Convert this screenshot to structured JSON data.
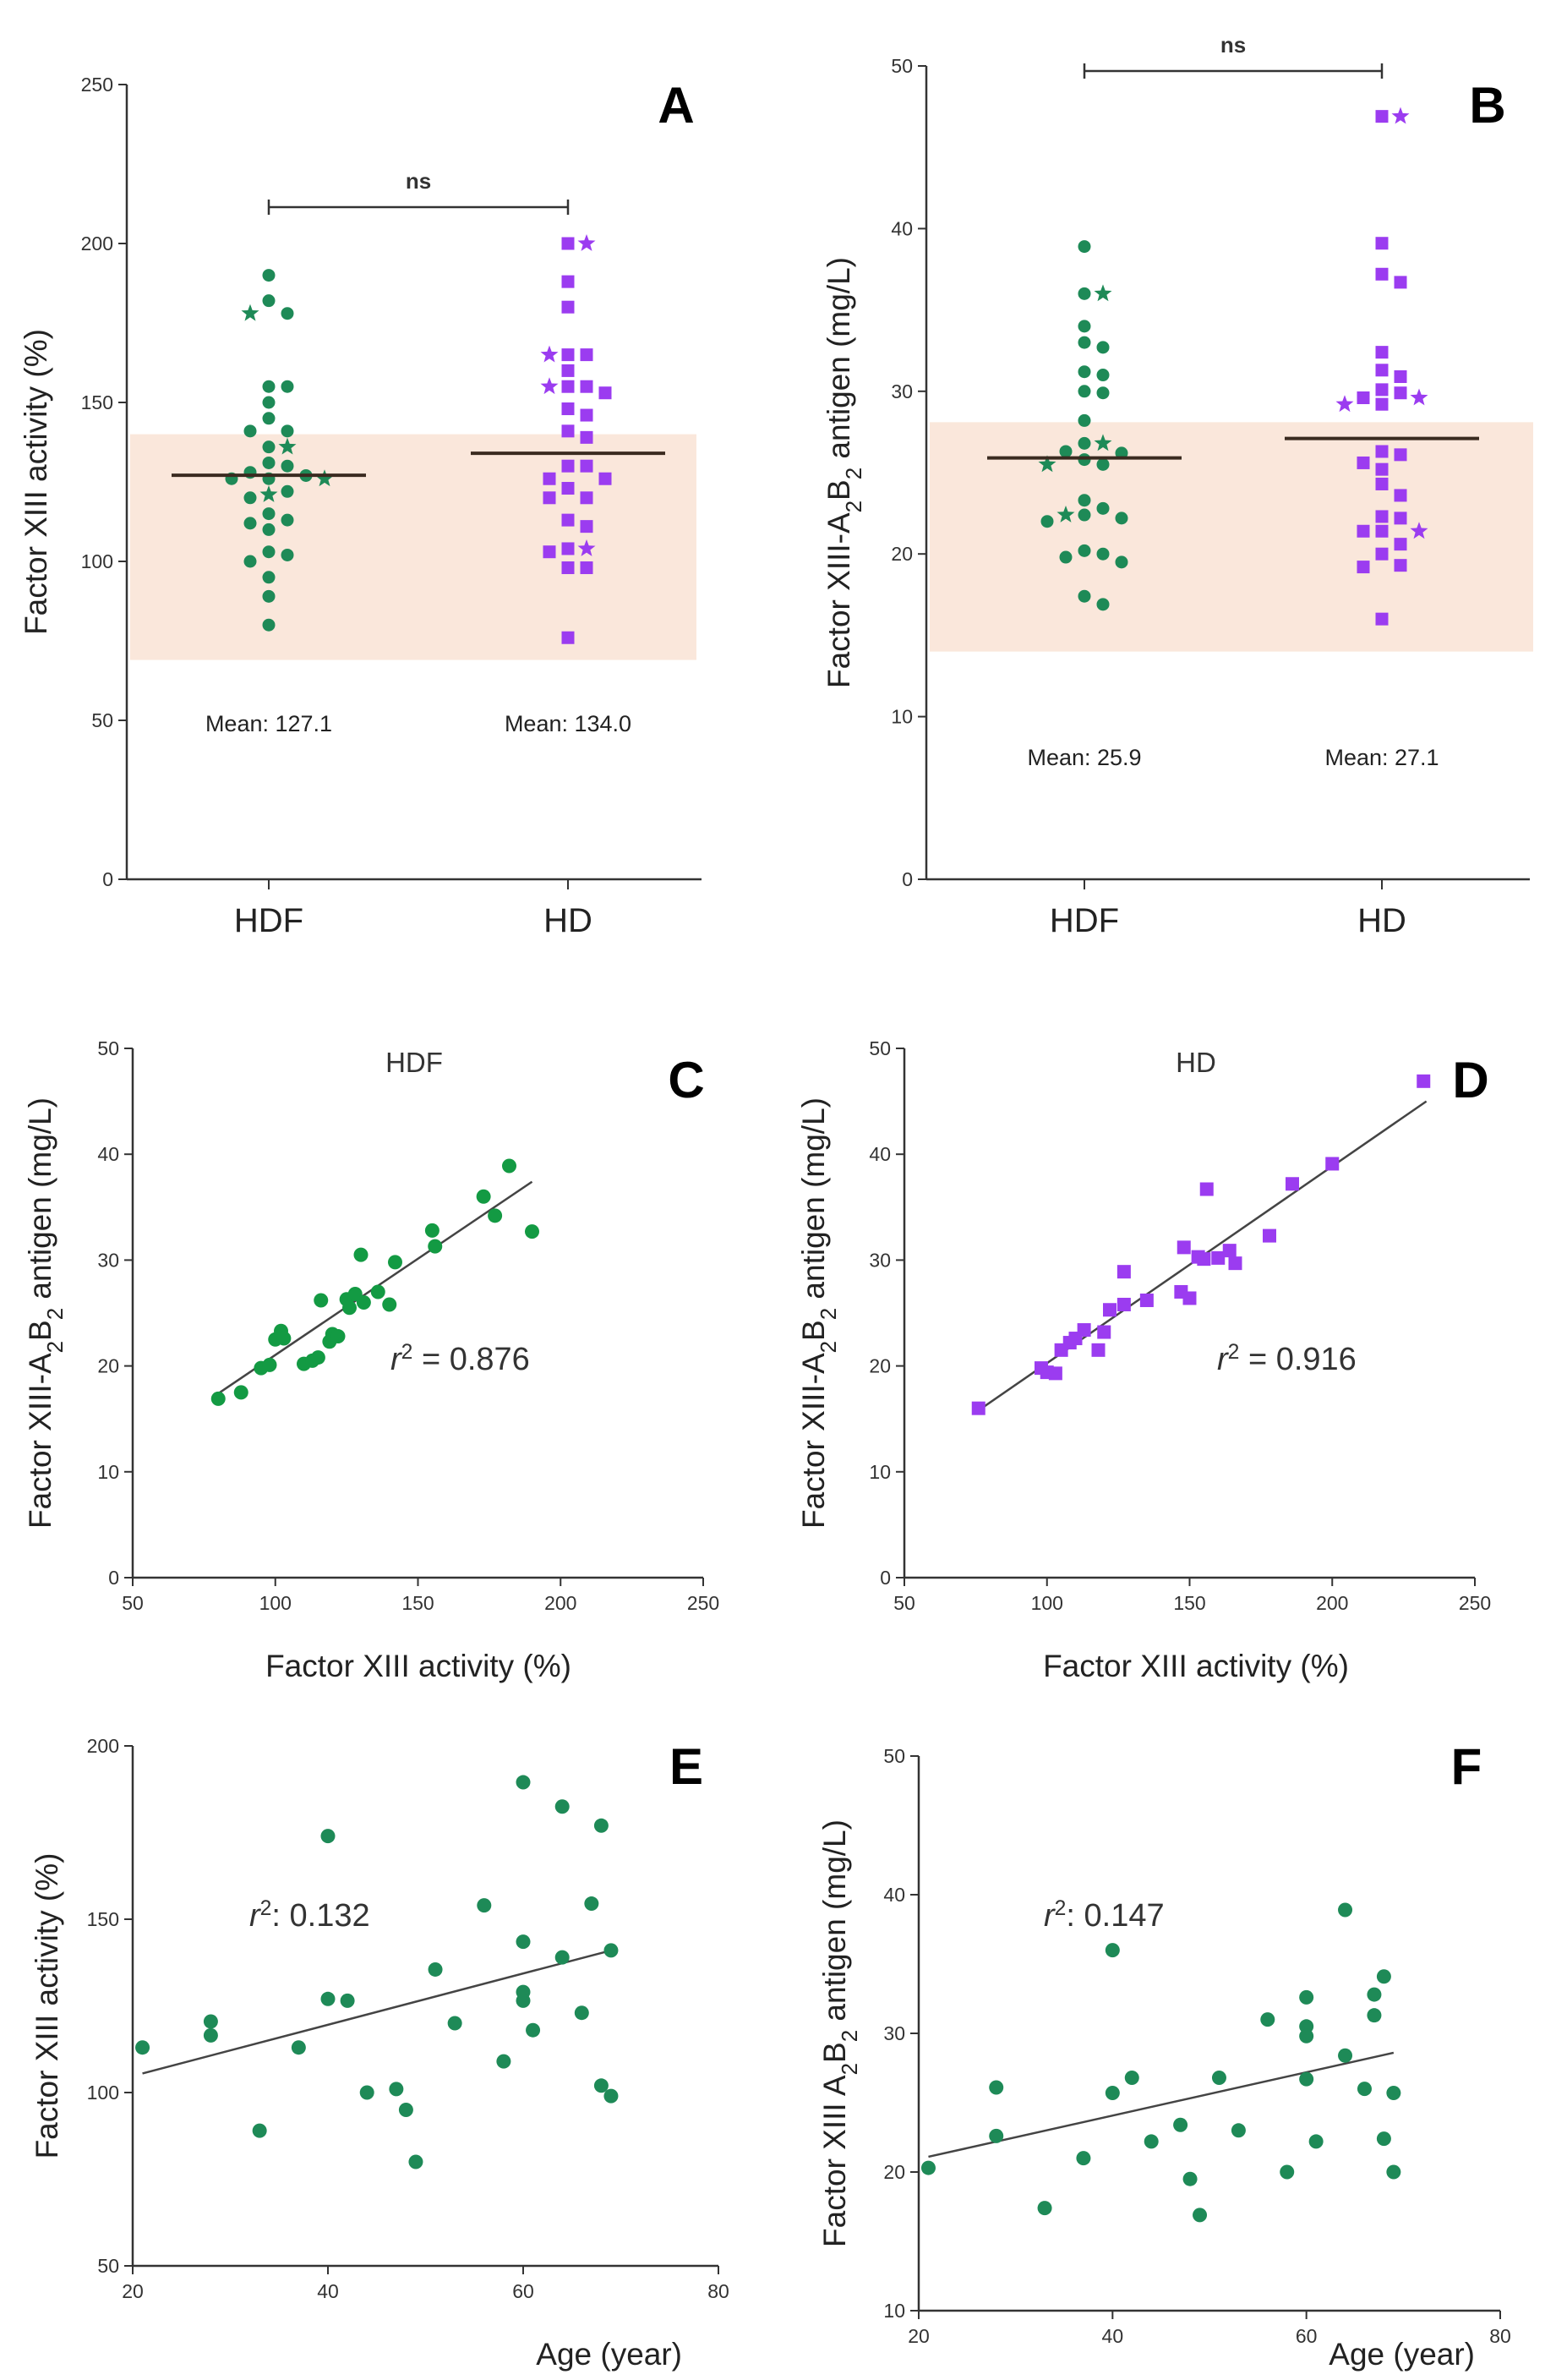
{
  "colors": {
    "hdf": "#1e8a57",
    "hd": "#9b3cf0",
    "normal_range": "#fae7db",
    "axis": "#333333",
    "fit": "#444444",
    "green_scatter": "#139a43"
  },
  "chart_data": [
    {
      "id": "A",
      "type": "scatter",
      "panel_label": "A",
      "ylabel": "Factor XIII activity (%)",
      "ylim": [
        0,
        250
      ],
      "yticks": [
        0,
        50,
        100,
        150,
        200,
        250
      ],
      "categories": [
        "HDF",
        "HD"
      ],
      "normal_range": [
        69,
        140
      ],
      "series": [
        {
          "name": "HDF",
          "mean": 127.1,
          "mean_label": "Mean: 127.1",
          "values": [
            190,
            182,
            178,
            155,
            155,
            150,
            145,
            141,
            141,
            136,
            131,
            130,
            128,
            127,
            126,
            126,
            122,
            120,
            115,
            113,
            112,
            110,
            103,
            102,
            100,
            95,
            89,
            80
          ],
          "star_values": [
            178,
            136,
            121,
            126
          ]
        },
        {
          "name": "HD",
          "mean": 134.0,
          "mean_label": "Mean: 134.0",
          "values": [
            200,
            188,
            180,
            165,
            165,
            160,
            155,
            155,
            153,
            148,
            146,
            141,
            139,
            130,
            130,
            126,
            126,
            123,
            120,
            120,
            113,
            111,
            104,
            103,
            98,
            98,
            76
          ],
          "star_values": [
            200,
            165,
            155,
            104
          ]
        }
      ],
      "significance": "ns"
    },
    {
      "id": "B",
      "type": "scatter",
      "panel_label": "B",
      "ylabel": "Factor XIII-A₂B₂ antigen (mg/L)",
      "ylim": [
        0,
        50
      ],
      "yticks": [
        0,
        10,
        20,
        30,
        40,
        50
      ],
      "categories": [
        "HDF",
        "HD"
      ],
      "normal_range": [
        14,
        28.1
      ],
      "series": [
        {
          "name": "HDF",
          "mean": 25.9,
          "mean_label": "Mean: 25.9",
          "values": [
            38.9,
            36,
            34,
            33,
            32.7,
            31.2,
            31,
            30,
            29.9,
            28.2,
            26.8,
            26.3,
            26.2,
            25.8,
            25.5,
            23.3,
            22.8,
            22.4,
            22.2,
            22,
            20.2,
            20,
            19.8,
            19.5,
            17.4,
            16.9
          ],
          "star_values": [
            36,
            26.8,
            25.5,
            22.4
          ]
        },
        {
          "name": "HD",
          "mean": 27.1,
          "mean_label": "Mean: 27.1",
          "values": [
            46.9,
            39.1,
            37.2,
            36.7,
            32.4,
            31.3,
            30.9,
            30.1,
            29.9,
            29.6,
            29.2,
            26.3,
            26.1,
            25.6,
            25.2,
            24.3,
            23.6,
            22.3,
            22.2,
            21.4,
            21.4,
            20.6,
            20,
            19.3,
            19.2,
            16
          ],
          "star_values": [
            46.9,
            29.6,
            29.2,
            21.4
          ]
        }
      ],
      "significance": "ns"
    },
    {
      "id": "C",
      "type": "scatter",
      "panel_label": "C",
      "subtitle": "HDF",
      "xlabel": "Factor XIII activity (%)",
      "ylabel": "Factor XIII-A₂B₂ antigen (mg/L)",
      "xlim": [
        50,
        250
      ],
      "ylim": [
        0,
        50
      ],
      "xticks": [
        50,
        100,
        150,
        200,
        250
      ],
      "yticks": [
        0,
        10,
        20,
        30,
        40,
        50
      ],
      "r2_label": "= 0.876",
      "fit": {
        "x": [
          80,
          190
        ],
        "y": [
          17.4,
          37.4
        ]
      },
      "points": [
        [
          80,
          16.9
        ],
        [
          88,
          17.5
        ],
        [
          95,
          19.8
        ],
        [
          98,
          20.1
        ],
        [
          100,
          22.5
        ],
        [
          102,
          23.3
        ],
        [
          103,
          22.6
        ],
        [
          110,
          20.2
        ],
        [
          113,
          20.5
        ],
        [
          115,
          20.8
        ],
        [
          116,
          26.2
        ],
        [
          119,
          22.3
        ],
        [
          120,
          23
        ],
        [
          122,
          22.8
        ],
        [
          125,
          26.3
        ],
        [
          126,
          25.5
        ],
        [
          128,
          26.8
        ],
        [
          130,
          30.5
        ],
        [
          131,
          26
        ],
        [
          136,
          27
        ],
        [
          140,
          25.8
        ],
        [
          142,
          29.8
        ],
        [
          155,
          32.8
        ],
        [
          156,
          31.3
        ],
        [
          173,
          36
        ],
        [
          177,
          34.2
        ],
        [
          182,
          38.9
        ],
        [
          190,
          32.7
        ]
      ]
    },
    {
      "id": "D",
      "type": "scatter",
      "panel_label": "D",
      "subtitle": "HD",
      "xlabel": "Factor XIII activity (%)",
      "ylabel": "Factor XIII-A₂B₂ antigen (mg/L)",
      "xlim": [
        50,
        250
      ],
      "ylim": [
        0,
        50
      ],
      "xticks": [
        50,
        100,
        150,
        200,
        250
      ],
      "yticks": [
        0,
        10,
        20,
        30,
        40,
        50
      ],
      "r2_label": "= 0.916",
      "fit": {
        "x": [
          76,
          233
        ],
        "y": [
          15.8,
          45
        ]
      },
      "points": [
        [
          76,
          16
        ],
        [
          98,
          19.8
        ],
        [
          100,
          19.4
        ],
        [
          103,
          19.3
        ],
        [
          105,
          21.5
        ],
        [
          108,
          22.2
        ],
        [
          110,
          22.6
        ],
        [
          113,
          23.4
        ],
        [
          118,
          21.5
        ],
        [
          120,
          23.2
        ],
        [
          122,
          25.3
        ],
        [
          127,
          25.8
        ],
        [
          127,
          28.9
        ],
        [
          135,
          26.2
        ],
        [
          147,
          27
        ],
        [
          148,
          31.2
        ],
        [
          150,
          26.4
        ],
        [
          153,
          30.3
        ],
        [
          155,
          30.1
        ],
        [
          156,
          36.7
        ],
        [
          160,
          30.2
        ],
        [
          164,
          30.9
        ],
        [
          166,
          29.7
        ],
        [
          178,
          32.3
        ],
        [
          186,
          37.2
        ],
        [
          200,
          39.1
        ],
        [
          232,
          46.9
        ]
      ]
    },
    {
      "id": "E",
      "type": "scatter",
      "panel_label": "E",
      "xlabel": "Age (year)",
      "ylabel": "Factor XIII activity (%)",
      "xlim": [
        20,
        80
      ],
      "ylim": [
        50,
        200
      ],
      "xticks": [
        20,
        40,
        60,
        80
      ],
      "yticks": [
        50,
        100,
        150,
        200
      ],
      "r2_label": ": 0.132",
      "fit": {
        "x": [
          21,
          69
        ],
        "y": [
          105.5,
          141
        ]
      },
      "points": [
        [
          21,
          113
        ],
        [
          28,
          120.5
        ],
        [
          28,
          116.5
        ],
        [
          33,
          89
        ],
        [
          37,
          113
        ],
        [
          40,
          174
        ],
        [
          40,
          127
        ],
        [
          42,
          126.5
        ],
        [
          44,
          100
        ],
        [
          47,
          101
        ],
        [
          48,
          95
        ],
        [
          49,
          80
        ],
        [
          51,
          135.5
        ],
        [
          53,
          120
        ],
        [
          56,
          154
        ],
        [
          58,
          109
        ],
        [
          60,
          189.5
        ],
        [
          60,
          143.5
        ],
        [
          60,
          129
        ],
        [
          60,
          126.5
        ],
        [
          61,
          118
        ],
        [
          64,
          182.5
        ],
        [
          64,
          139
        ],
        [
          66,
          123
        ],
        [
          67,
          154.5
        ],
        [
          68,
          177
        ],
        [
          68,
          102
        ],
        [
          69,
          141
        ],
        [
          69,
          99
        ]
      ]
    },
    {
      "id": "F",
      "type": "scatter",
      "panel_label": "F",
      "xlabel": "Age (year)",
      "ylabel": "Factor XIII A₂B₂ antigen (mg/L)",
      "xlim": [
        20,
        80
      ],
      "ylim": [
        10,
        50
      ],
      "xticks": [
        20,
        40,
        60,
        80
      ],
      "yticks": [
        10,
        20,
        30,
        40,
        50
      ],
      "r2_label": ": 0.147",
      "fit": {
        "x": [
          21,
          69
        ],
        "y": [
          21.1,
          28.6
        ]
      },
      "points": [
        [
          21,
          20.3
        ],
        [
          28,
          26.1
        ],
        [
          28,
          22.6
        ],
        [
          33,
          17.4
        ],
        [
          37,
          21
        ],
        [
          40,
          36
        ],
        [
          40,
          25.7
        ],
        [
          42,
          26.8
        ],
        [
          44,
          22.2
        ],
        [
          47,
          23.4
        ],
        [
          48,
          19.5
        ],
        [
          49,
          16.9
        ],
        [
          51,
          26.8
        ],
        [
          53,
          23
        ],
        [
          56,
          31
        ],
        [
          58,
          20
        ],
        [
          60,
          32.6
        ],
        [
          60,
          30.5
        ],
        [
          60,
          29.8
        ],
        [
          60,
          26.7
        ],
        [
          61,
          22.2
        ],
        [
          64,
          38.9
        ],
        [
          64,
          28.4
        ],
        [
          66,
          26
        ],
        [
          67,
          32.8
        ],
        [
          67,
          31.3
        ],
        [
          68,
          34.1
        ],
        [
          68,
          22.4
        ],
        [
          69,
          25.7
        ],
        [
          69,
          20
        ]
      ]
    }
  ]
}
